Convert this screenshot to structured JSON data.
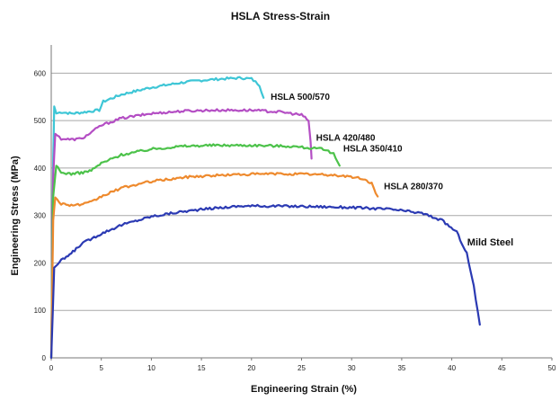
{
  "chart_data": {
    "type": "line",
    "title": "HSLA Stress-Strain",
    "xlabel": "Engineering Strain (%)",
    "ylabel": "Engineering Stress (MPa)",
    "xlim": [
      0,
      50
    ],
    "ylim": [
      0,
      650
    ],
    "xticks": [
      "0",
      "5",
      "10",
      "15",
      "20",
      "25",
      "30",
      "35",
      "40",
      "45",
      "50"
    ],
    "yticks": [
      "0",
      "100",
      "200",
      "300",
      "400",
      "500",
      "600"
    ],
    "grid": "horizontal",
    "series": [
      {
        "name": "HSLA 500/570",
        "color": "#3ec6d6",
        "points": [
          [
            0,
            0
          ],
          [
            0.2,
            420
          ],
          [
            0.3,
            530
          ],
          [
            0.5,
            515
          ],
          [
            1,
            518
          ],
          [
            2,
            515
          ],
          [
            3,
            517
          ],
          [
            4,
            520
          ],
          [
            4.8,
            522
          ],
          [
            5.2,
            540
          ],
          [
            7,
            555
          ],
          [
            10,
            570
          ],
          [
            13,
            580
          ],
          [
            15,
            585
          ],
          [
            17,
            588
          ],
          [
            19,
            590
          ],
          [
            20,
            588
          ],
          [
            20.8,
            575
          ],
          [
            21.2,
            548
          ]
        ]
      },
      {
        "name": "HSLA 420/480",
        "color": "#b44ec4",
        "points": [
          [
            0,
            0
          ],
          [
            0.2,
            380
          ],
          [
            0.4,
            472
          ],
          [
            1,
            462
          ],
          [
            2,
            460
          ],
          [
            3,
            462
          ],
          [
            3.5,
            468
          ],
          [
            5,
            490
          ],
          [
            7,
            505
          ],
          [
            10,
            515
          ],
          [
            13,
            520
          ],
          [
            16,
            522
          ],
          [
            20,
            522
          ],
          [
            23,
            518
          ],
          [
            25,
            512
          ],
          [
            25.7,
            500
          ],
          [
            25.9,
            455
          ],
          [
            26,
            420
          ]
        ]
      },
      {
        "name": "HSLA 350/410",
        "color": "#4cc24a",
        "points": [
          [
            0,
            0
          ],
          [
            0.2,
            340
          ],
          [
            0.5,
            405
          ],
          [
            1,
            390
          ],
          [
            2,
            388
          ],
          [
            3,
            390
          ],
          [
            4,
            395
          ],
          [
            5,
            410
          ],
          [
            7,
            428
          ],
          [
            10,
            440
          ],
          [
            13,
            446
          ],
          [
            16,
            448
          ],
          [
            20,
            448
          ],
          [
            24,
            446
          ],
          [
            27,
            440
          ],
          [
            28.2,
            430
          ],
          [
            28.8,
            405
          ]
        ]
      },
      {
        "name": "HSLA 280/370",
        "color": "#ee8a2e",
        "points": [
          [
            0,
            0
          ],
          [
            0.2,
            290
          ],
          [
            0.4,
            338
          ],
          [
            1,
            325
          ],
          [
            2,
            322
          ],
          [
            3,
            323
          ],
          [
            4,
            328
          ],
          [
            5,
            340
          ],
          [
            7,
            358
          ],
          [
            10,
            372
          ],
          [
            14,
            382
          ],
          [
            18,
            386
          ],
          [
            22,
            388
          ],
          [
            26,
            387
          ],
          [
            29,
            384
          ],
          [
            31,
            378
          ],
          [
            32,
            368
          ],
          [
            32.6,
            340
          ]
        ]
      },
      {
        "name": "Mild Steel",
        "color": "#2b3ab3",
        "points": [
          [
            0,
            0
          ],
          [
            0.3,
            190
          ],
          [
            1,
            205
          ],
          [
            2,
            220
          ],
          [
            3,
            240
          ],
          [
            5,
            262
          ],
          [
            7,
            280
          ],
          [
            10,
            298
          ],
          [
            13,
            308
          ],
          [
            16,
            315
          ],
          [
            19,
            320
          ],
          [
            22,
            320
          ],
          [
            26,
            319
          ],
          [
            30,
            317
          ],
          [
            34,
            313
          ],
          [
            37,
            305
          ],
          [
            39,
            290
          ],
          [
            40.5,
            265
          ],
          [
            41.5,
            220
          ],
          [
            42.2,
            150
          ],
          [
            42.8,
            70
          ]
        ]
      }
    ]
  }
}
